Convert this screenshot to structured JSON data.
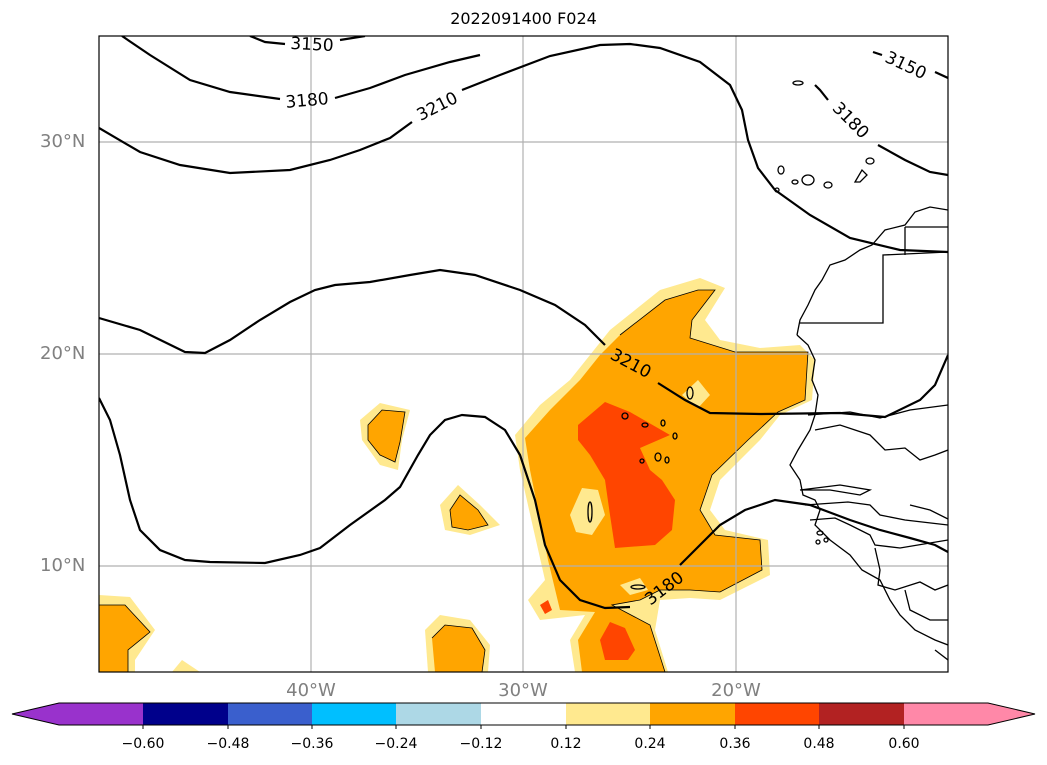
{
  "title": "2022091400 F024",
  "map": {
    "region": "Tropical North Atlantic / West Africa",
    "extent": {
      "lon": [
        -50,
        -10
      ],
      "lat": [
        5,
        35
      ]
    },
    "lat_ticks": [
      {
        "value": 30,
        "label": "30°N"
      },
      {
        "value": 20,
        "label": "20°N"
      },
      {
        "value": 10,
        "label": "10°N"
      }
    ],
    "lon_ticks": [
      {
        "value": -40,
        "label": "40°W"
      },
      {
        "value": -30,
        "label": "30°W"
      },
      {
        "value": -20,
        "label": "20°W"
      }
    ],
    "gridlines": true,
    "contour_lines": {
      "color": "#000000",
      "labels": [
        "3150",
        "3180",
        "3210",
        "3150",
        "3180",
        "3210",
        "3180"
      ]
    },
    "shaded_field": {
      "colors": {
        "light": "#ffe98f",
        "mid": "#ffa500",
        "high": "#ff4500"
      }
    }
  },
  "colorbar": {
    "tick_labels": [
      "−0.60",
      "−0.48",
      "−0.36",
      "−0.24",
      "−0.12",
      "0.12",
      "0.24",
      "0.36",
      "0.48",
      "0.60"
    ],
    "colors": [
      "#9932cc",
      "#00008b",
      "#3a5fcd",
      "#00bfff",
      "#add8e6",
      "#ffffff",
      "#ffe98f",
      "#ffa500",
      "#ff4500",
      "#b22222",
      "#ff88a8",
      "#ff88a8"
    ],
    "extend": "both"
  }
}
